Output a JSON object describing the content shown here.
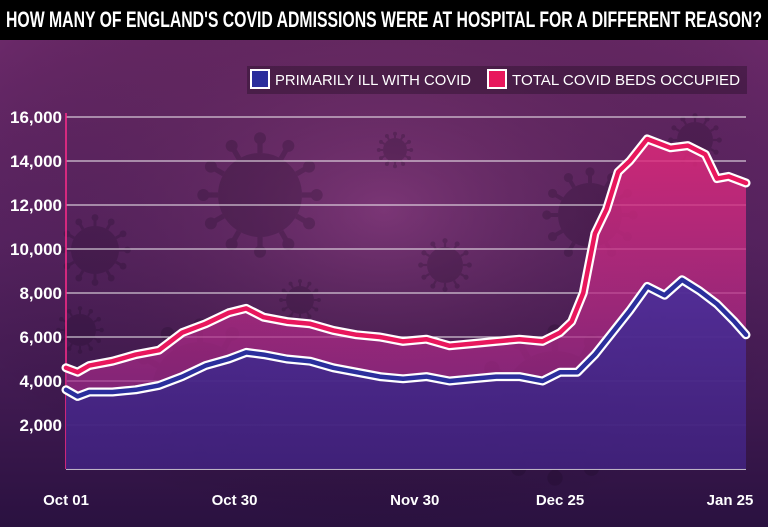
{
  "chart_data": {
    "type": "area",
    "title": "HOW MANY OF ENGLAND'S COVID ADMISSIONS WERE AT HOSPITAL FOR A DIFFERENT REASON?",
    "xlabel": "",
    "ylabel": "",
    "ylim": [
      0,
      16000
    ],
    "yticks": [
      "2,000",
      "4,000",
      "6,000",
      "8,000",
      "10,000",
      "12,000",
      "14,000",
      "16,000"
    ],
    "ytick_values": [
      2000,
      4000,
      6000,
      8000,
      10000,
      12000,
      14000,
      16000
    ],
    "xticks": [
      "Oct 01",
      "Oct 30",
      "Nov 30",
      "Dec 25",
      "Jan 25"
    ],
    "xtick_index": [
      0,
      29,
      60,
      85,
      116
    ],
    "x_range_index": [
      0,
      117
    ],
    "grid": true,
    "legend_position": "top-right",
    "series": [
      {
        "name": "PRIMARILY ILL WITH COVID",
        "color": "#2b2e9c",
        "x_index": [
          0,
          2,
          4,
          8,
          12,
          16,
          20,
          24,
          28,
          31,
          34,
          38,
          42,
          46,
          50,
          54,
          58,
          62,
          66,
          70,
          74,
          78,
          82,
          85,
          88,
          91,
          94,
          97,
          100,
          103,
          106,
          109,
          112,
          115,
          117
        ],
        "values": [
          3600,
          3300,
          3500,
          3500,
          3600,
          3800,
          4200,
          4700,
          5000,
          5300,
          5200,
          5000,
          4900,
          4600,
          4400,
          4200,
          4100,
          4200,
          4000,
          4100,
          4200,
          4200,
          4000,
          4400,
          4400,
          5200,
          6200,
          7200,
          8300,
          7900,
          8600,
          8100,
          7500,
          6700,
          6100
        ]
      },
      {
        "name": "TOTAL COVID BEDS OCCUPIED",
        "color": "#e8175d",
        "x_index": [
          0,
          2,
          4,
          8,
          12,
          16,
          20,
          24,
          28,
          31,
          34,
          38,
          42,
          46,
          50,
          54,
          58,
          62,
          66,
          70,
          74,
          78,
          82,
          85,
          87,
          89,
          91,
          93,
          95,
          97,
          100,
          102,
          104,
          107,
          110,
          112,
          114,
          117
        ],
        "values": [
          4600,
          4400,
          4700,
          4900,
          5200,
          5400,
          6200,
          6600,
          7100,
          7300,
          6900,
          6700,
          6600,
          6300,
          6100,
          6000,
          5800,
          5900,
          5600,
          5700,
          5800,
          5900,
          5800,
          6200,
          6700,
          8000,
          10700,
          11800,
          13500,
          14000,
          15000,
          14800,
          14600,
          14700,
          14300,
          13200,
          13300,
          13000
        ]
      }
    ]
  },
  "colors": {
    "title_bar": "#000000",
    "background_top": "#8a2f7c",
    "background_bottom": "#1f0b35",
    "primary_line": "#2b2e9c",
    "total_line": "#e8175d"
  }
}
